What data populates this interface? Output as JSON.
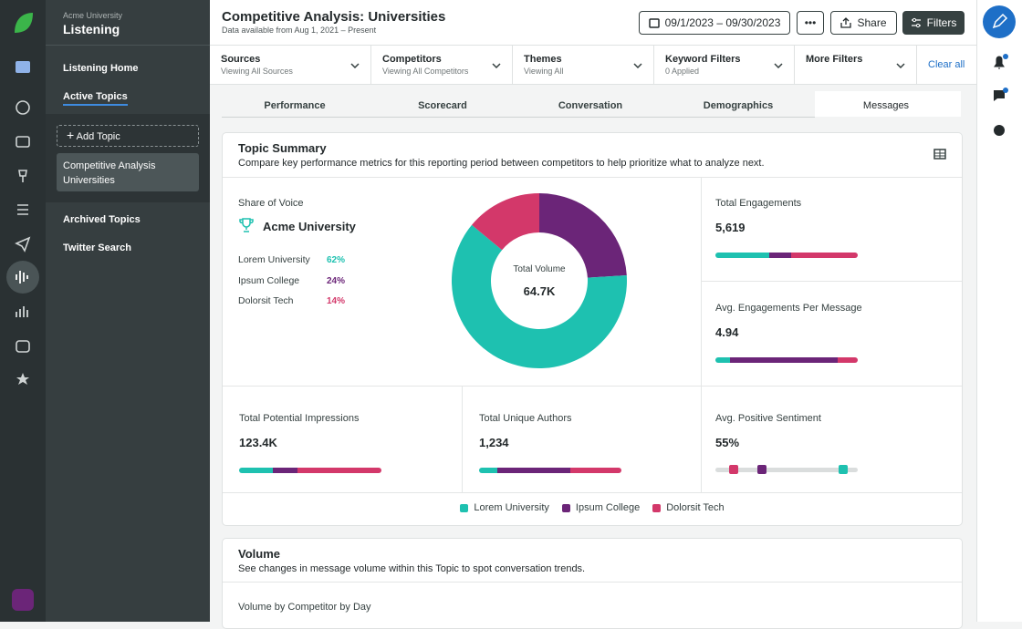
{
  "sidebar": {
    "org": "Acme University",
    "app": "Listening",
    "nav": [
      "Listening Home",
      "Active Topics"
    ],
    "add_topic": "Add Topic",
    "topic": [
      "Competitive Analysis",
      "Universities"
    ],
    "more": [
      "Archived Topics",
      "Twitter Search"
    ]
  },
  "header": {
    "title": "Competitive Analysis: Universities",
    "subtitle": "Data available from Aug 1, 2021 – Present",
    "date_range": "09/1/2023 – 09/30/2023",
    "more": "•••",
    "share": "Share",
    "filters": "Filters"
  },
  "filters": [
    {
      "label": "Sources",
      "sub": "Viewing All Sources"
    },
    {
      "label": "Competitors",
      "sub": "Viewing All Competitors"
    },
    {
      "label": "Themes",
      "sub": "Viewing All"
    },
    {
      "label": "Keyword Filters",
      "sub": "0 Applied"
    },
    {
      "label": "More Filters"
    }
  ],
  "clear": "Clear all",
  "tabs": [
    "Performance",
    "Scorecard",
    "Conversation",
    "Demographics",
    "Messages"
  ],
  "topic_summary": {
    "title": "Topic Summary",
    "description": "Compare key performance metrics for this reporting period between competitors to help prioritize what to analyze next.",
    "share_of_voice": {
      "label": "Share of Voice",
      "leader": "Acme University",
      "series": [
        {
          "name": "Lorem University",
          "color": "#1ec1b0",
          "value": 62,
          "value_label": "62%"
        },
        {
          "name": "Ipsum College",
          "color": "#6b2578",
          "value": 24,
          "value_label": "24%"
        },
        {
          "name": "Dolorsit Tech",
          "color": "#d3386a",
          "value": 14,
          "value_label": "14%"
        }
      ]
    },
    "donut": {
      "label": "Total Volume",
      "value": "64.7K"
    },
    "metrics": [
      {
        "label": "Total Engagements",
        "value": "5,619",
        "segments": [
          38,
          15,
          47
        ]
      },
      {
        "label": "Avg. Engagements Per Message",
        "value": "4.94",
        "segments": [
          10,
          76,
          14
        ]
      },
      {
        "label": "Total Potential Impressions",
        "value": "123.4K",
        "segments": [
          24,
          17,
          59
        ]
      },
      {
        "label": "Total Unique Authors",
        "value": "1,234",
        "segments": [
          13,
          51,
          36
        ]
      }
    ],
    "sentiment": {
      "label": "Avg. Positive Sentiment",
      "value": "55%",
      "markers": [
        90,
        33,
        13
      ]
    }
  },
  "volume": {
    "title": "Volume",
    "description": "See changes in message volume within this Topic to spot conversation trends.",
    "chart_label": "Volume by Competitor by Day"
  }
}
